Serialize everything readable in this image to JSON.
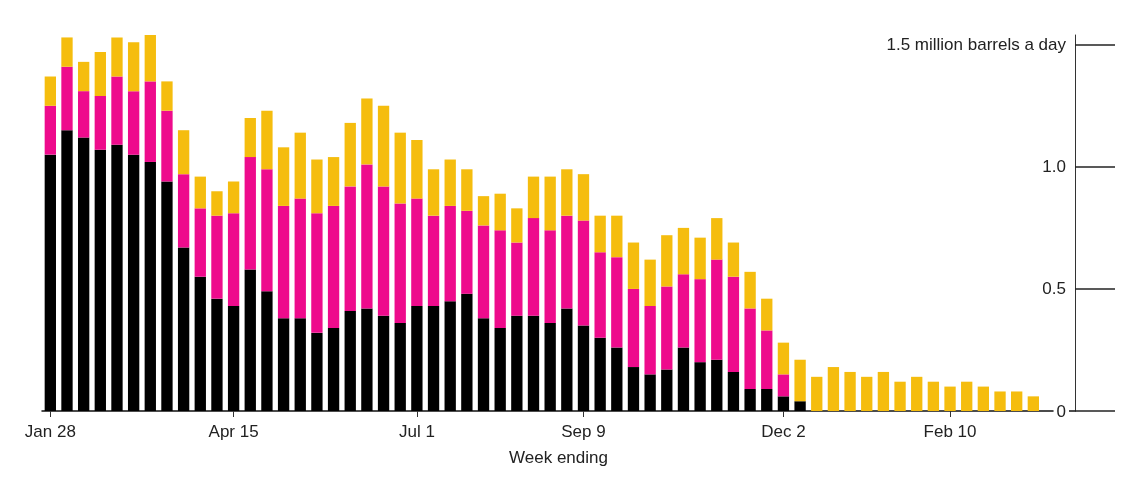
{
  "chart_data": {
    "type": "bar",
    "stacked": true,
    "xlabel": "Week ending",
    "categories": [
      "Jan 28",
      null,
      null,
      null,
      null,
      null,
      null,
      null,
      null,
      null,
      null,
      "Apr 15",
      null,
      null,
      null,
      null,
      null,
      null,
      null,
      null,
      null,
      null,
      "Jul 1",
      null,
      null,
      null,
      null,
      null,
      null,
      null,
      null,
      null,
      "Sep 9",
      null,
      null,
      null,
      null,
      null,
      null,
      null,
      null,
      null,
      null,
      null,
      "Dec 2",
      null,
      null,
      null,
      null,
      null,
      null,
      null,
      null,
      null,
      "Feb 10",
      null,
      null,
      null,
      null,
      null
    ],
    "series": [
      {
        "color": "#000000",
        "values": [
          1.05,
          1.15,
          1.12,
          1.07,
          1.09,
          1.05,
          1.02,
          0.94,
          0.67,
          0.55,
          0.46,
          0.43,
          0.58,
          0.49,
          0.38,
          0.38,
          0.32,
          0.34,
          0.41,
          0.42,
          0.39,
          0.36,
          0.43,
          0.43,
          0.45,
          0.48,
          0.38,
          0.34,
          0.39,
          0.39,
          0.36,
          0.42,
          0.35,
          0.3,
          0.26,
          0.18,
          0.15,
          0.17,
          0.26,
          0.2,
          0.21,
          0.16,
          0.09,
          0.09,
          0.06,
          0.04,
          null,
          null,
          null,
          null,
          null,
          null,
          null,
          null,
          null,
          null,
          null,
          null,
          null,
          null
        ]
      },
      {
        "color": "#ee0b8c",
        "values": [
          0.2,
          0.26,
          0.19,
          0.22,
          0.28,
          0.26,
          0.33,
          0.29,
          0.3,
          0.28,
          0.34,
          0.38,
          0.46,
          0.5,
          0.46,
          0.49,
          0.49,
          0.5,
          0.51,
          0.59,
          0.53,
          0.49,
          0.44,
          0.37,
          0.39,
          0.34,
          0.38,
          0.4,
          0.3,
          0.4,
          0.38,
          0.38,
          0.43,
          0.35,
          0.37,
          0.32,
          0.28,
          0.34,
          0.3,
          0.34,
          0.41,
          0.39,
          0.33,
          0.24,
          0.09,
          null,
          null,
          null,
          null,
          null,
          null,
          null,
          null,
          null,
          null,
          null,
          null,
          null,
          null,
          null
        ]
      },
      {
        "color": "#f5bd0e",
        "values": [
          0.12,
          0.12,
          0.12,
          0.18,
          0.16,
          0.2,
          0.19,
          0.12,
          0.18,
          0.13,
          0.1,
          0.13,
          0.16,
          0.24,
          0.24,
          0.27,
          0.22,
          0.2,
          0.26,
          0.27,
          0.33,
          0.29,
          0.24,
          0.19,
          0.19,
          0.17,
          0.12,
          0.15,
          0.14,
          0.17,
          0.22,
          0.19,
          0.19,
          0.15,
          0.17,
          0.19,
          0.19,
          0.21,
          0.19,
          0.17,
          0.17,
          0.14,
          0.15,
          0.13,
          0.13,
          0.17,
          0.14,
          0.18,
          0.16,
          0.14,
          0.16,
          0.12,
          0.14,
          0.12,
          0.1,
          0.12,
          0.1,
          0.08,
          0.08,
          0.06
        ]
      }
    ],
    "ylim": [
      0,
      1.54
    ],
    "yticks": [
      0,
      0.5,
      {
        "value": 1,
        "label": "1.0"
      },
      {
        "value": 1.5,
        "label": "1.5 million barrels a day"
      }
    ]
  }
}
